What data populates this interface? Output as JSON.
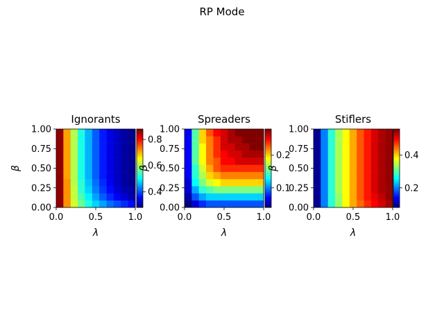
{
  "figure": {
    "title": "RP Mode"
  },
  "chart_data": [
    {
      "type": "heatmap",
      "title": "Ignorants",
      "xlabel": "λ",
      "ylabel": "β",
      "xlim": [
        0,
        1
      ],
      "ylim": [
        0,
        1
      ],
      "x_ticks": [
        "0.0",
        "0.5",
        "1.0"
      ],
      "y_ticks": [
        "0.00",
        "0.25",
        "0.50",
        "0.75",
        "1.00"
      ],
      "colorbar": {
        "ticks": [
          "0.4",
          "0.6",
          "0.8"
        ],
        "tick_values": [
          0.4,
          0.6,
          0.8
        ],
        "range": [
          0.28,
          0.88
        ]
      },
      "colormap": "jet",
      "grid": {
        "rows": 11,
        "cols": 11
      },
      "values": [
        [
          0.87,
          0.72,
          0.63,
          0.57,
          0.52,
          0.48,
          0.45,
          0.42,
          0.4,
          0.38,
          0.36
        ],
        [
          0.87,
          0.72,
          0.62,
          0.55,
          0.5,
          0.45,
          0.41,
          0.38,
          0.35,
          0.33,
          0.31
        ],
        [
          0.87,
          0.72,
          0.62,
          0.53,
          0.48,
          0.43,
          0.39,
          0.36,
          0.33,
          0.31,
          0.3
        ],
        [
          0.87,
          0.72,
          0.61,
          0.53,
          0.47,
          0.42,
          0.38,
          0.35,
          0.32,
          0.3,
          0.29
        ],
        [
          0.87,
          0.71,
          0.61,
          0.52,
          0.46,
          0.41,
          0.37,
          0.34,
          0.32,
          0.3,
          0.29
        ],
        [
          0.87,
          0.71,
          0.61,
          0.52,
          0.46,
          0.41,
          0.37,
          0.34,
          0.32,
          0.3,
          0.29
        ],
        [
          0.87,
          0.71,
          0.61,
          0.52,
          0.46,
          0.41,
          0.37,
          0.34,
          0.32,
          0.3,
          0.29
        ],
        [
          0.87,
          0.71,
          0.61,
          0.52,
          0.46,
          0.41,
          0.37,
          0.34,
          0.32,
          0.3,
          0.29
        ],
        [
          0.87,
          0.71,
          0.61,
          0.52,
          0.46,
          0.41,
          0.37,
          0.34,
          0.32,
          0.3,
          0.29
        ],
        [
          0.87,
          0.71,
          0.61,
          0.52,
          0.46,
          0.41,
          0.37,
          0.34,
          0.32,
          0.3,
          0.29
        ],
        [
          0.87,
          0.71,
          0.61,
          0.52,
          0.46,
          0.41,
          0.37,
          0.34,
          0.32,
          0.3,
          0.29
        ]
      ]
    },
    {
      "type": "heatmap",
      "title": "Spreaders",
      "xlabel": "λ",
      "ylabel": "β",
      "xlim": [
        0,
        1
      ],
      "ylim": [
        0,
        1
      ],
      "x_ticks": [
        "0.0",
        "0.5",
        "1.0"
      ],
      "y_ticks": [
        "0.00",
        "0.25",
        "0.50",
        "0.75",
        "1.00"
      ],
      "colorbar": {
        "ticks": [
          "0.1",
          "0.2"
        ],
        "tick_values": [
          0.1,
          0.2
        ],
        "range": [
          0.04,
          0.28
        ]
      },
      "colormap": "jet",
      "grid": {
        "rows": 11,
        "cols": 11
      },
      "values": [
        [
          0.04,
          0.06,
          0.08,
          0.09,
          0.09,
          0.09,
          0.09,
          0.09,
          0.09,
          0.09,
          0.09
        ],
        [
          0.05,
          0.09,
          0.11,
          0.12,
          0.12,
          0.12,
          0.12,
          0.12,
          0.12,
          0.12,
          0.12
        ],
        [
          0.06,
          0.11,
          0.14,
          0.15,
          0.16,
          0.16,
          0.16,
          0.16,
          0.16,
          0.16,
          0.16
        ],
        [
          0.06,
          0.13,
          0.16,
          0.18,
          0.19,
          0.2,
          0.2,
          0.2,
          0.2,
          0.2,
          0.2
        ],
        [
          0.07,
          0.14,
          0.17,
          0.2,
          0.21,
          0.22,
          0.22,
          0.22,
          0.22,
          0.22,
          0.22
        ],
        [
          0.07,
          0.14,
          0.18,
          0.21,
          0.23,
          0.24,
          0.24,
          0.24,
          0.24,
          0.24,
          0.24
        ],
        [
          0.07,
          0.15,
          0.19,
          0.22,
          0.23,
          0.25,
          0.25,
          0.26,
          0.26,
          0.26,
          0.26
        ],
        [
          0.07,
          0.15,
          0.19,
          0.22,
          0.24,
          0.25,
          0.26,
          0.26,
          0.27,
          0.27,
          0.27
        ],
        [
          0.07,
          0.15,
          0.19,
          0.22,
          0.24,
          0.26,
          0.26,
          0.27,
          0.27,
          0.28,
          0.28
        ],
        [
          0.07,
          0.15,
          0.2,
          0.22,
          0.24,
          0.26,
          0.27,
          0.27,
          0.28,
          0.28,
          0.28
        ],
        [
          0.07,
          0.15,
          0.2,
          0.23,
          0.25,
          0.26,
          0.27,
          0.28,
          0.28,
          0.28,
          0.28
        ]
      ]
    },
    {
      "type": "heatmap",
      "title": "Stiflers",
      "xlabel": "λ",
      "ylabel": "β",
      "xlim": [
        0,
        1
      ],
      "ylim": [
        0,
        1
      ],
      "x_ticks": [
        "0.0",
        "0.5",
        "1.0"
      ],
      "y_ticks": [
        "0.00",
        "0.25",
        "0.50",
        "0.75",
        "1.00"
      ],
      "colorbar": {
        "ticks": [
          "0.2",
          "0.4"
        ],
        "tick_values": [
          0.2,
          0.4
        ],
        "range": [
          0.08,
          0.56
        ]
      },
      "colormap": "jet",
      "grid": {
        "rows": 11,
        "cols": 11
      },
      "values": [
        [
          0.09,
          0.2,
          0.28,
          0.33,
          0.38,
          0.42,
          0.45,
          0.48,
          0.5,
          0.52,
          0.54
        ],
        [
          0.09,
          0.2,
          0.28,
          0.33,
          0.38,
          0.42,
          0.46,
          0.49,
          0.51,
          0.53,
          0.55
        ],
        [
          0.09,
          0.2,
          0.28,
          0.34,
          0.38,
          0.42,
          0.46,
          0.49,
          0.52,
          0.54,
          0.55
        ],
        [
          0.09,
          0.2,
          0.28,
          0.34,
          0.38,
          0.42,
          0.46,
          0.49,
          0.52,
          0.54,
          0.55
        ],
        [
          0.09,
          0.2,
          0.28,
          0.34,
          0.38,
          0.42,
          0.46,
          0.49,
          0.52,
          0.54,
          0.55
        ],
        [
          0.09,
          0.2,
          0.28,
          0.34,
          0.38,
          0.42,
          0.46,
          0.49,
          0.52,
          0.54,
          0.55
        ],
        [
          0.09,
          0.2,
          0.28,
          0.34,
          0.38,
          0.42,
          0.46,
          0.49,
          0.52,
          0.54,
          0.55
        ],
        [
          0.09,
          0.2,
          0.28,
          0.34,
          0.38,
          0.42,
          0.46,
          0.49,
          0.52,
          0.54,
          0.55
        ],
        [
          0.09,
          0.2,
          0.28,
          0.34,
          0.38,
          0.42,
          0.46,
          0.49,
          0.52,
          0.54,
          0.55
        ],
        [
          0.09,
          0.2,
          0.28,
          0.34,
          0.38,
          0.42,
          0.46,
          0.49,
          0.52,
          0.54,
          0.55
        ],
        [
          0.09,
          0.2,
          0.28,
          0.34,
          0.38,
          0.42,
          0.46,
          0.49,
          0.52,
          0.54,
          0.55
        ]
      ]
    }
  ]
}
